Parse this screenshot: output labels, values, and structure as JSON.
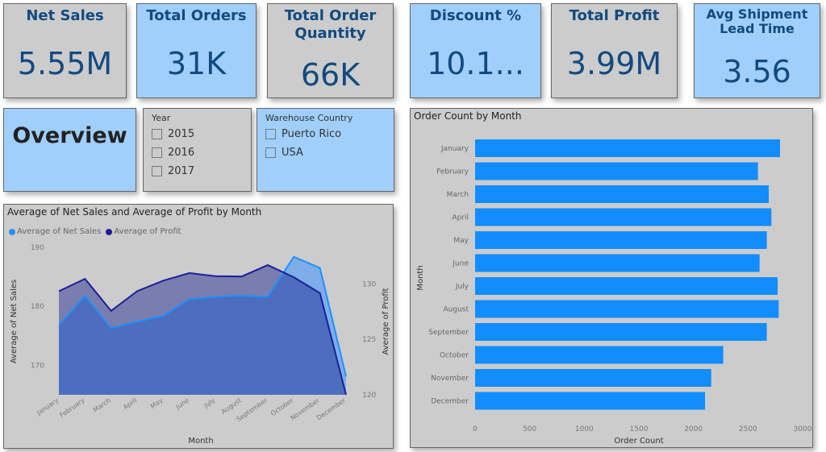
{
  "kpis": [
    {
      "title": "Net Sales",
      "value": "5.55M"
    },
    {
      "title": "Total Orders",
      "value": "31K"
    },
    {
      "title": "Total Order Quantity",
      "value": "66K"
    },
    {
      "title": "Discount %",
      "value": "10.1..."
    },
    {
      "title": "Total Profit",
      "value": "3.99M"
    },
    {
      "title": "Avg Shipment Lead Time",
      "value": "3.56"
    }
  ],
  "overview": "Overview",
  "year_slicer": {
    "title": "Year",
    "options": [
      "2015",
      "2016",
      "2017"
    ]
  },
  "country_slicer": {
    "title": "Warehouse Country",
    "options": [
      "Puerto Rico",
      "USA"
    ]
  },
  "colors": {
    "card_blue": "#a0cffb",
    "card_gray": "#cccccc",
    "kpi_text": "#124a80",
    "sales": "#1e90ff",
    "profit": "#1a1f9c",
    "bar": "#118dff"
  },
  "chart_data": [
    {
      "type": "area",
      "title": "Average of Net Sales and Average of Profit by Month",
      "legend": [
        "Average of Net Sales",
        "Average of  Profit"
      ],
      "legend_position": "top-left",
      "xlabel": "Month",
      "ylabel": "Average of Net Sales",
      "y2label": "Average of Profit",
      "categories": [
        "January",
        "February",
        "March",
        "April",
        "May",
        "June",
        "July",
        "August",
        "September",
        "October",
        "November",
        "December"
      ],
      "ylim": [
        165,
        190
      ],
      "yticks": [
        "170",
        "180",
        "190"
      ],
      "y2lim": [
        120,
        133.3
      ],
      "y2ticks": [
        "120",
        "125",
        "130"
      ],
      "series": [
        {
          "name": "Average of Net Sales",
          "axis": "left",
          "values": [
            176.8,
            181.8,
            176.3,
            177.4,
            178.4,
            181.2,
            181.6,
            181.8,
            181.6,
            188.4,
            186.5,
            168.1
          ]
        },
        {
          "name": "Average of Profit",
          "axis": "right",
          "values": [
            129.35,
            130.46,
            127.57,
            129.35,
            130.3,
            130.98,
            130.7,
            130.67,
            131.7,
            130.6,
            129.17,
            120.0
          ]
        }
      ]
    },
    {
      "type": "bar",
      "title": "Order Count by Month",
      "xlabel": "Order Count",
      "ylabel": "Month",
      "categories": [
        "January",
        "February",
        "March",
        "April",
        "May",
        "June",
        "July",
        "August",
        "September",
        "October",
        "November",
        "December"
      ],
      "values": [
        2793,
        2591,
        2690,
        2714,
        2672,
        2606,
        2771,
        2781,
        2672,
        2273,
        2163,
        2106
      ],
      "xlim": [
        0,
        3000
      ],
      "xticks": [
        "0",
        "500",
        "1000",
        "1500",
        "2000",
        "2500",
        "3000"
      ]
    }
  ]
}
